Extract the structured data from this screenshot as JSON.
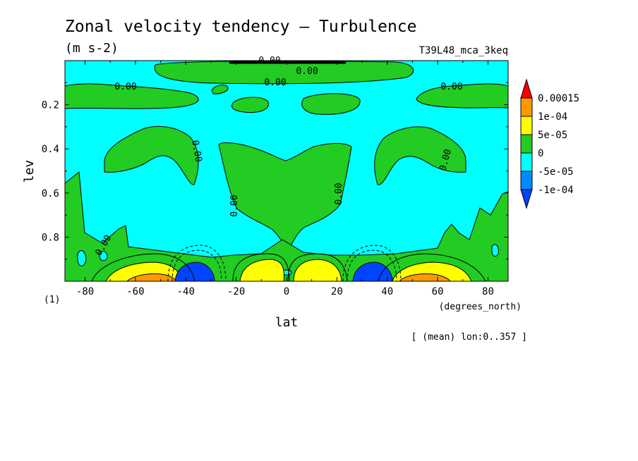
{
  "chart_data": {
    "type": "heatmap",
    "title": "Zonal velocity tendency — Turbulence",
    "units": "(m s-2)",
    "experiment": "T39L48_mca_3keq",
    "xlabel": "lat",
    "xunits": "(degrees_north)",
    "ylabel": "lev",
    "yunits": "(1)",
    "footnote": "[ (mean) lon:0..357 ]",
    "xlim": [
      -88,
      88
    ],
    "ylim": [
      1.0,
      0.0
    ],
    "x_ticks": [
      -80,
      -60,
      -40,
      -20,
      0,
      20,
      40,
      60,
      80
    ],
    "y_ticks": [
      0.2,
      0.4,
      0.6,
      0.8
    ],
    "contour_label": "0.00",
    "legend": {
      "position": "right",
      "levels": [
        "0.00015",
        "1e-04",
        "5e-05",
        "0",
        "-5e-05",
        "-1e-04"
      ],
      "colors": [
        "#ff0000",
        "#ff9900",
        "#ffff00",
        "#22cc22",
        "#00ffff",
        "#0088ff",
        "#0044ff"
      ]
    },
    "fill_colors": {
      "background": "#00ffff",
      "positive_small": "#22cc22",
      "positive_mid": "#ffff00",
      "positive_high": "#ff9900",
      "negative_mid": "#0088ff",
      "negative_high": "#0044ff"
    }
  }
}
